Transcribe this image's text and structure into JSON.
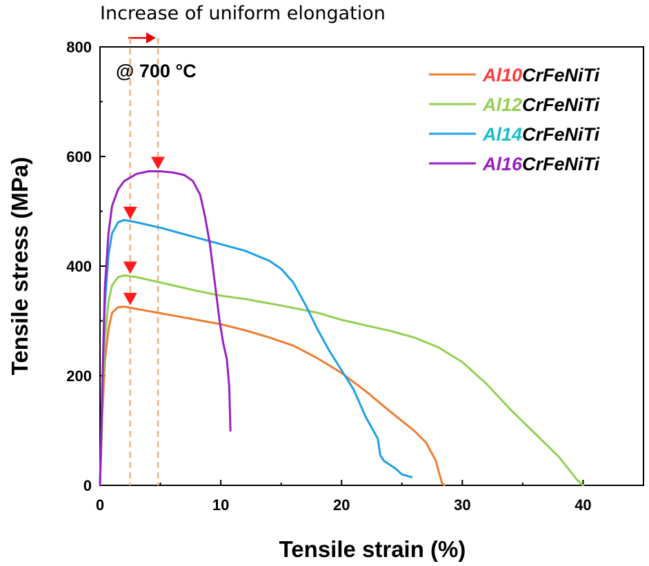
{
  "chart_data": {
    "type": "line",
    "title": "",
    "xlabel": "Tensile strain (%)",
    "ylabel": "Tensile stress (MPa)",
    "xlim": [
      0,
      45
    ],
    "ylim": [
      0,
      800
    ],
    "x_ticks": [
      0,
      10,
      20,
      30,
      40
    ],
    "y_ticks": [
      0,
      200,
      400,
      600,
      800
    ],
    "grid": false,
    "legend_position": "top-right",
    "annotations": {
      "top_note": "Increase of uniform elongation",
      "temperature": "@ 700  °C",
      "uniform_elongation_lines_x": [
        2.5,
        4.8
      ],
      "peak_markers": [
        {
          "x": 2.5,
          "y": 340
        },
        {
          "x": 2.5,
          "y": 397
        },
        {
          "x": 2.5,
          "y": 497
        },
        {
          "x": 4.8,
          "y": 588
        }
      ]
    },
    "series": [
      {
        "name_prefix": "Al10",
        "name_suffix": "CrFeNiTi",
        "color": "#ED7D31",
        "prefix_color": "#FF3B3B",
        "points": [
          [
            0,
            0
          ],
          [
            0.2,
            130
          ],
          [
            0.4,
            225
          ],
          [
            0.7,
            285
          ],
          [
            1.0,
            315
          ],
          [
            1.5,
            325
          ],
          [
            2.0,
            326
          ],
          [
            3,
            322
          ],
          [
            4,
            318
          ],
          [
            6,
            310
          ],
          [
            8,
            302
          ],
          [
            10,
            294
          ],
          [
            12,
            283
          ],
          [
            14,
            270
          ],
          [
            16,
            255
          ],
          [
            18,
            232
          ],
          [
            20,
            205
          ],
          [
            22,
            172
          ],
          [
            24,
            135
          ],
          [
            26,
            100
          ],
          [
            27,
            78
          ],
          [
            27.8,
            45
          ],
          [
            28.3,
            5
          ],
          [
            28.5,
            0
          ]
        ]
      },
      {
        "name_prefix": "Al12",
        "name_suffix": "CrFeNiTi",
        "color": "#92D050",
        "prefix_color": "#92D050",
        "points": [
          [
            0,
            0
          ],
          [
            0.2,
            150
          ],
          [
            0.4,
            265
          ],
          [
            0.7,
            335
          ],
          [
            1.0,
            365
          ],
          [
            1.5,
            380
          ],
          [
            2.0,
            383
          ],
          [
            3,
            380
          ],
          [
            5,
            370
          ],
          [
            8,
            355
          ],
          [
            10,
            346
          ],
          [
            12,
            340
          ],
          [
            15,
            328
          ],
          [
            18,
            315
          ],
          [
            20,
            302
          ],
          [
            22,
            292
          ],
          [
            24,
            282
          ],
          [
            26,
            270
          ],
          [
            28,
            252
          ],
          [
            30,
            225
          ],
          [
            32,
            185
          ],
          [
            34,
            138
          ],
          [
            36,
            95
          ],
          [
            38,
            52
          ],
          [
            39.5,
            10
          ],
          [
            40,
            0
          ]
        ]
      },
      {
        "name_prefix": "Al14",
        "name_suffix": "CrFeNiTi",
        "color": "#1EA0E6",
        "prefix_color": "#17BFC9",
        "points": [
          [
            0,
            0
          ],
          [
            0.2,
            180
          ],
          [
            0.4,
            330
          ],
          [
            0.7,
            420
          ],
          [
            1.0,
            460
          ],
          [
            1.5,
            480
          ],
          [
            2.0,
            484
          ],
          [
            3,
            480
          ],
          [
            5,
            470
          ],
          [
            8,
            452
          ],
          [
            10,
            440
          ],
          [
            12,
            428
          ],
          [
            14,
            410
          ],
          [
            15,
            395
          ],
          [
            16,
            370
          ],
          [
            17,
            330
          ],
          [
            18,
            285
          ],
          [
            19,
            245
          ],
          [
            20,
            210
          ],
          [
            21,
            175
          ],
          [
            22,
            125
          ],
          [
            23,
            85
          ],
          [
            23.2,
            55
          ],
          [
            23.5,
            45
          ],
          [
            24.5,
            30
          ],
          [
            25,
            20
          ],
          [
            25.8,
            15
          ]
        ]
      },
      {
        "name_prefix": "Al16",
        "name_suffix": "CrFeNiTi",
        "color": "#9A1FC3",
        "prefix_color": "#9A1FC3",
        "points": [
          [
            0,
            0
          ],
          [
            0.2,
            190
          ],
          [
            0.4,
            360
          ],
          [
            0.7,
            460
          ],
          [
            1.0,
            510
          ],
          [
            1.5,
            540
          ],
          [
            2.0,
            555
          ],
          [
            3,
            568
          ],
          [
            4,
            573
          ],
          [
            5,
            573
          ],
          [
            6,
            571
          ],
          [
            7,
            566
          ],
          [
            7.7,
            555
          ],
          [
            8.3,
            530
          ],
          [
            8.7,
            490
          ],
          [
            9.1,
            440
          ],
          [
            9.5,
            370
          ],
          [
            9.9,
            300
          ],
          [
            10.2,
            260
          ],
          [
            10.5,
            230
          ],
          [
            10.7,
            180
          ],
          [
            10.8,
            100
          ]
        ]
      }
    ]
  }
}
